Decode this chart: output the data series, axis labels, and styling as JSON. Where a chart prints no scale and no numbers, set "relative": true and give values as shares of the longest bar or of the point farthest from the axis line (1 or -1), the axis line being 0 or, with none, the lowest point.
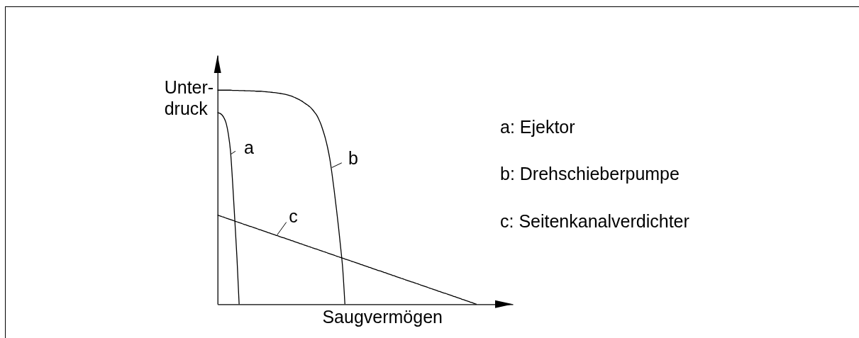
{
  "chart_data": {
    "type": "line",
    "relative": true,
    "xlabel": "Saugvermögen",
    "ylabel": "Unter-\ndruck",
    "legend": "left",
    "categories": [
      null,
      null,
      null,
      null,
      null,
      null,
      null,
      null,
      null,
      null,
      null,
      null,
      null,
      null,
      null,
      null,
      null,
      null,
      null,
      null,
      null,
      null,
      null,
      null,
      null,
      null,
      null,
      null,
      null,
      null,
      null,
      null,
      null,
      null,
      null,
      null,
      null,
      null,
      null,
      null,
      null,
      null,
      null,
      null,
      null,
      null,
      null,
      null,
      null,
      null,
      null,
      null,
      null,
      null,
      null,
      null,
      null,
      null,
      null,
      null,
      null,
      null,
      null,
      null,
      null,
      null,
      null,
      null,
      null,
      null,
      null,
      null,
      null,
      null,
      null,
      null,
      null,
      null,
      null,
      null,
      null,
      null,
      null,
      null,
      null,
      null,
      null,
      null,
      null,
      null,
      null,
      null,
      null,
      null,
      null,
      null,
      null,
      null,
      null,
      null,
      null,
      null,
      null,
      null,
      null,
      null,
      null,
      null,
      null,
      null,
      null,
      null,
      null,
      null,
      null,
      null,
      null,
      null,
      null,
      null,
      null
    ],
    "series": [
      {
        "name": "a",
        "color": "#000000",
        "values": [
          0.895,
          0.892,
          0.885,
          0.87,
          0.845,
          0.795,
          0.715,
          0.565,
          0.392,
          0.215,
          0,
          null,
          null,
          null,
          null,
          null,
          null,
          null,
          null,
          null,
          null,
          null,
          null,
          null,
          null,
          null,
          null,
          null,
          null,
          null,
          null,
          null,
          null,
          null,
          null,
          null,
          null,
          null,
          null,
          null,
          null,
          null,
          null,
          null,
          null,
          null,
          null,
          null,
          null,
          null,
          null,
          null,
          null,
          null,
          null,
          null,
          null,
          null,
          null,
          null,
          null,
          null,
          null,
          null,
          null,
          null,
          null,
          null,
          null,
          null,
          null,
          null,
          null,
          null,
          null,
          null,
          null,
          null,
          null,
          null,
          null,
          null,
          null,
          null,
          null,
          null,
          null,
          null,
          null,
          null,
          null,
          null,
          null,
          null,
          null,
          null,
          null,
          null,
          null,
          null,
          null,
          null,
          null,
          null,
          null,
          null,
          null,
          null,
          null,
          null,
          null,
          null,
          null,
          null,
          null,
          null,
          null,
          null,
          null,
          null,
          null
        ]
      },
      {
        "name": "b",
        "color": "#000000",
        "values": [
          1,
          1,
          1,
          1,
          1,
          1,
          1,
          0.999,
          0.999,
          0.999,
          0.998,
          0.998,
          0.998,
          0.997,
          0.997,
          0.997,
          0.996,
          0.996,
          0.995,
          0.995,
          0.995,
          0.994,
          0.993,
          0.992,
          0.991,
          0.99,
          0.989,
          0.988,
          0.986,
          0.985,
          0.983,
          0.981,
          0.979,
          0.976,
          0.973,
          0.969,
          0.965,
          0.96,
          0.955,
          0.949,
          0.942,
          0.935,
          0.928,
          0.92,
          0.909,
          0.896,
          0.882,
          0.862,
          0.838,
          0.807,
          0.773,
          0.731,
          0.679,
          0.611,
          0.534,
          0.451,
          0.364,
          0.268,
          0.164,
          0,
          null,
          null,
          null,
          null,
          null,
          null,
          null,
          null,
          null,
          null,
          null,
          null,
          null,
          null,
          null,
          null,
          null,
          null,
          null,
          null,
          null,
          null,
          null,
          null,
          null,
          null,
          null,
          null,
          null,
          null,
          null,
          null,
          null,
          null,
          null,
          null,
          null,
          null,
          null,
          null,
          null,
          null,
          null,
          null,
          null,
          null,
          null,
          null,
          null,
          null,
          null,
          null,
          null,
          null,
          null,
          null,
          null,
          null,
          null,
          null,
          null
        ]
      },
      {
        "name": "c",
        "color": "#000000",
        "values": [
          0.416,
          0.413,
          0.409,
          0.406,
          0.402,
          0.399,
          0.395,
          0.392,
          0.388,
          0.385,
          0.381,
          0.378,
          0.374,
          0.371,
          0.367,
          0.364,
          0.361,
          0.357,
          0.354,
          0.35,
          0.347,
          0.343,
          0.34,
          0.336,
          0.333,
          0.329,
          0.326,
          0.322,
          0.319,
          0.315,
          0.312,
          0.309,
          0.305,
          0.302,
          0.298,
          0.295,
          0.291,
          0.288,
          0.284,
          0.281,
          0.277,
          0.274,
          0.27,
          0.267,
          0.263,
          0.26,
          0.257,
          0.253,
          0.25,
          0.246,
          0.243,
          0.239,
          0.236,
          0.232,
          0.229,
          0.225,
          0.222,
          0.218,
          0.215,
          0.211,
          0.208,
          0.205,
          0.201,
          0.198,
          0.194,
          0.191,
          0.187,
          0.184,
          0.18,
          0.177,
          0.173,
          0.17,
          0.166,
          0.163,
          0.159,
          0.156,
          0.153,
          0.149,
          0.146,
          0.142,
          0.139,
          0.135,
          0.132,
          0.128,
          0.125,
          0.121,
          0.118,
          0.114,
          0.111,
          0.107,
          0.104,
          0.101,
          0.097,
          0.094,
          0.09,
          0.087,
          0.083,
          0.08,
          0.076,
          0.073,
          0.069,
          0.066,
          0.062,
          0.059,
          0.055,
          0.052,
          0.049,
          0.045,
          0.042,
          0.038,
          0.035,
          0.031,
          0.028,
          0.024,
          0.021,
          0.017,
          0.014,
          0.01,
          0.007,
          0.003,
          0
        ]
      }
    ],
    "annotations": [
      "a: Ejektor",
      "b: Drehschieberpumpe",
      "c: Seitenkanalverdichter"
    ]
  }
}
